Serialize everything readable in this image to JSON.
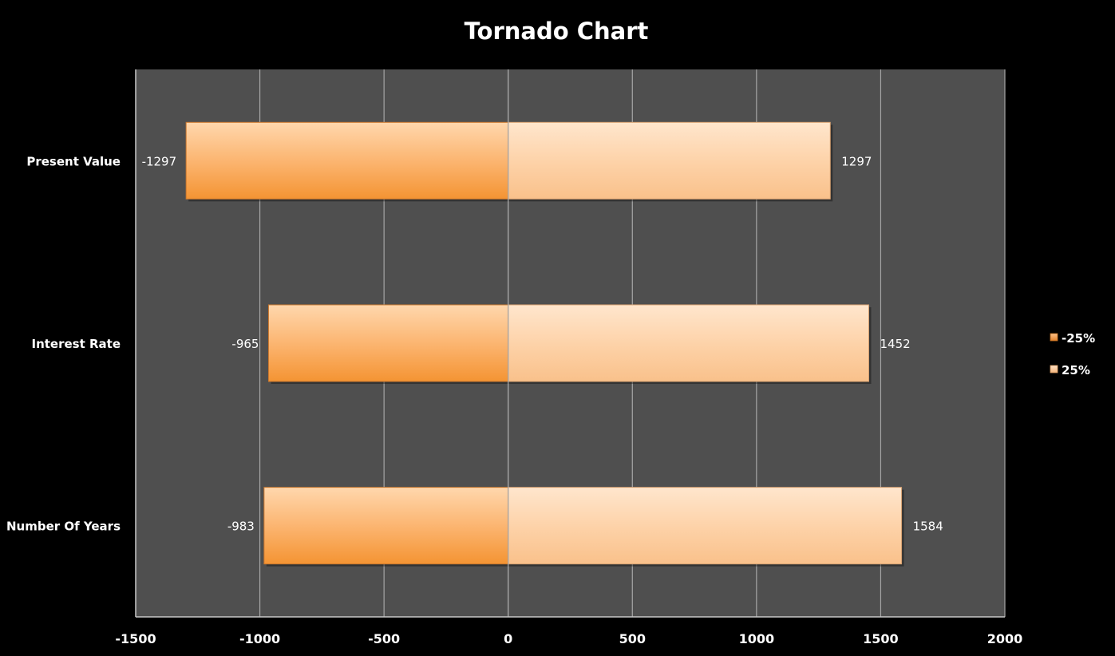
{
  "chart_data": {
    "type": "bar",
    "orientation": "horizontal",
    "title": "Tornado Chart",
    "categories": [
      "Present Value",
      "Interest Rate",
      "Number Of Years"
    ],
    "series": [
      {
        "name": "-25%",
        "values": [
          -1297,
          -965,
          -983
        ],
        "color": "#f5a050"
      },
      {
        "name": "25%",
        "values": [
          1297,
          1452,
          1584
        ],
        "color": "#fcc99b"
      }
    ],
    "data_labels": {
      "-25%": [
        "-1297",
        "-965",
        "-983"
      ],
      "25%": [
        "1297",
        "1452",
        "1584"
      ]
    },
    "xlim": [
      -1500,
      2000
    ],
    "xticks": [
      -1500,
      -1000,
      -500,
      0,
      500,
      1000,
      1500,
      2000
    ],
    "xtick_labels": [
      "-1500",
      "-1000",
      "-500",
      "0",
      "500",
      "1000",
      "1500",
      "2000"
    ],
    "grid": true,
    "legend_position": "right",
    "colors": {
      "background": "#000000",
      "plot_area": "#4f4f4f",
      "gridline": "#a6a6a6",
      "text": "#ffffff"
    }
  }
}
